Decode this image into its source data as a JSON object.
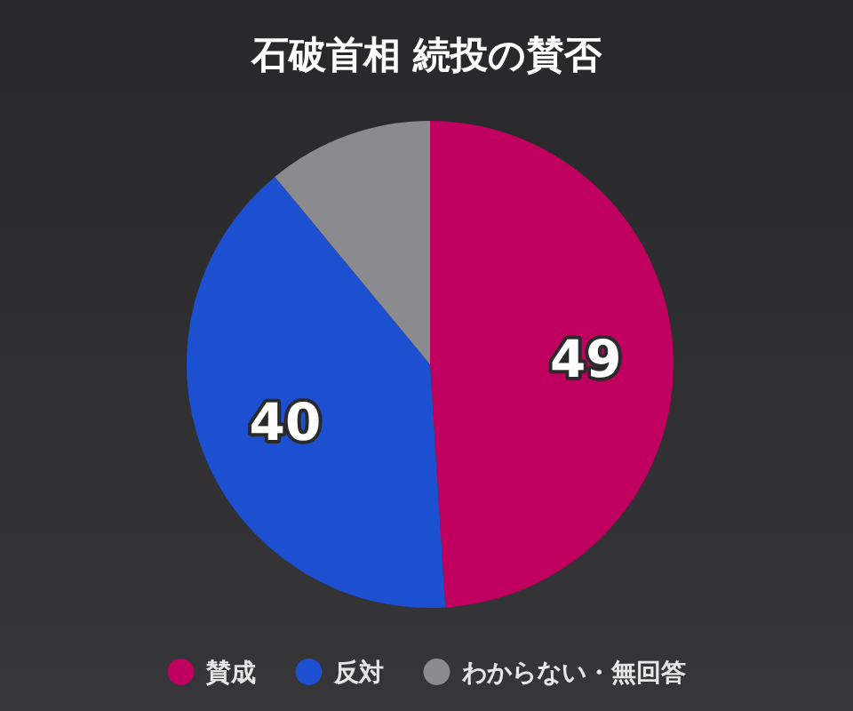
{
  "chart_data": {
    "type": "pie",
    "title": "石破首相 続投の賛否",
    "categories": [
      "賛成",
      "反対",
      "わからない・無回答"
    ],
    "values": [
      49,
      40,
      11
    ],
    "colors": [
      "#bf005f",
      "#1d4fd1",
      "#8b8a8e"
    ],
    "value_labels": [
      "49",
      "40",
      null
    ],
    "legend": "bottom"
  }
}
